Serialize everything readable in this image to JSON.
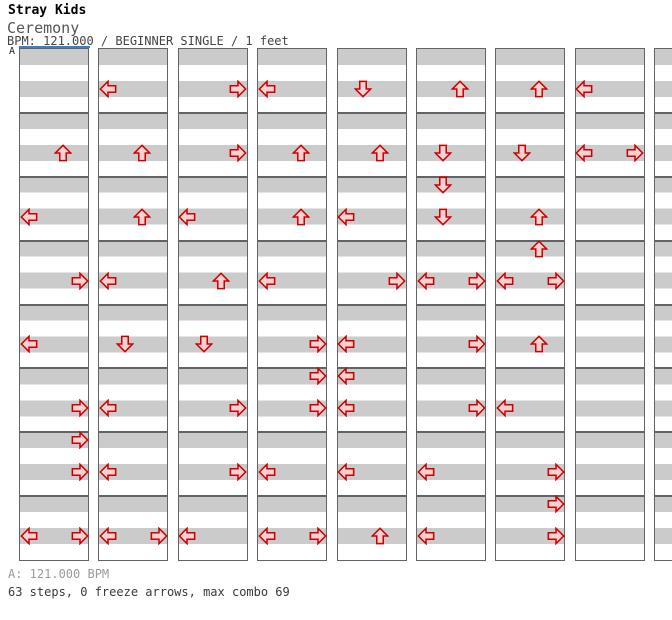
{
  "header": {
    "artist": "Stray Kids",
    "title": "Ceremony",
    "info": "BPM: 121.000 / BEGINNER SINGLE / 1 feet"
  },
  "section_label": "A",
  "footer": {
    "bpm_line": "A: 121.000 BPM",
    "stats_line": "63 steps, 0 freeze arrows, max combo 69"
  },
  "colors": {
    "stripe_gray": "#cbcbcb",
    "strip_border": "#636363",
    "arrow_outline": "#cc0000",
    "arrow_fill": "#f8d2d2",
    "section_marker_blue": "#3d7ec6"
  },
  "chart": {
    "type": "ddr-stepchart",
    "lanes": [
      "L",
      "D",
      "U",
      "R"
    ],
    "lane_names": {
      "L": "left",
      "D": "down",
      "U": "up",
      "R": "right"
    },
    "rows_per_column": 32,
    "rows_per_measure": 4,
    "total_steps": 63,
    "total_arrows": 69,
    "columns": [
      {
        "id": 1,
        "steps": [
          {
            "row": 6,
            "arrows": [
              "U"
            ]
          },
          {
            "row": 10,
            "arrows": [
              "L"
            ]
          },
          {
            "row": 14,
            "arrows": [
              "R"
            ]
          },
          {
            "row": 18,
            "arrows": [
              "L"
            ]
          },
          {
            "row": 22,
            "arrows": [
              "R"
            ]
          },
          {
            "row": 24,
            "arrows": [
              "R"
            ]
          },
          {
            "row": 26,
            "arrows": [
              "R"
            ]
          },
          {
            "row": 30,
            "arrows": [
              "L",
              "R"
            ]
          }
        ]
      },
      {
        "id": 2,
        "steps": [
          {
            "row": 2,
            "arrows": [
              "L"
            ]
          },
          {
            "row": 6,
            "arrows": [
              "U"
            ]
          },
          {
            "row": 10,
            "arrows": [
              "U"
            ]
          },
          {
            "row": 14,
            "arrows": [
              "L"
            ]
          },
          {
            "row": 18,
            "arrows": [
              "D"
            ]
          },
          {
            "row": 22,
            "arrows": [
              "L"
            ]
          },
          {
            "row": 26,
            "arrows": [
              "L"
            ]
          },
          {
            "row": 30,
            "arrows": [
              "L",
              "R"
            ]
          }
        ]
      },
      {
        "id": 3,
        "steps": [
          {
            "row": 2,
            "arrows": [
              "R"
            ]
          },
          {
            "row": 6,
            "arrows": [
              "R"
            ]
          },
          {
            "row": 10,
            "arrows": [
              "L"
            ]
          },
          {
            "row": 14,
            "arrows": [
              "U"
            ]
          },
          {
            "row": 18,
            "arrows": [
              "D"
            ]
          },
          {
            "row": 22,
            "arrows": [
              "R"
            ]
          },
          {
            "row": 26,
            "arrows": [
              "R"
            ]
          },
          {
            "row": 30,
            "arrows": [
              "L"
            ]
          }
        ]
      },
      {
        "id": 4,
        "steps": [
          {
            "row": 2,
            "arrows": [
              "L"
            ]
          },
          {
            "row": 6,
            "arrows": [
              "U"
            ]
          },
          {
            "row": 10,
            "arrows": [
              "U"
            ]
          },
          {
            "row": 14,
            "arrows": [
              "L"
            ]
          },
          {
            "row": 18,
            "arrows": [
              "R"
            ]
          },
          {
            "row": 20,
            "arrows": [
              "R"
            ]
          },
          {
            "row": 22,
            "arrows": [
              "R"
            ]
          },
          {
            "row": 26,
            "arrows": [
              "L"
            ]
          },
          {
            "row": 30,
            "arrows": [
              "L",
              "R"
            ]
          }
        ]
      },
      {
        "id": 5,
        "steps": [
          {
            "row": 2,
            "arrows": [
              "D"
            ]
          },
          {
            "row": 6,
            "arrows": [
              "U"
            ]
          },
          {
            "row": 10,
            "arrows": [
              "L"
            ]
          },
          {
            "row": 14,
            "arrows": [
              "R"
            ]
          },
          {
            "row": 18,
            "arrows": [
              "L"
            ]
          },
          {
            "row": 20,
            "arrows": [
              "L"
            ]
          },
          {
            "row": 22,
            "arrows": [
              "L"
            ]
          },
          {
            "row": 26,
            "arrows": [
              "L"
            ]
          },
          {
            "row": 30,
            "arrows": [
              "U"
            ]
          }
        ]
      },
      {
        "id": 6,
        "steps": [
          {
            "row": 2,
            "arrows": [
              "U"
            ]
          },
          {
            "row": 6,
            "arrows": [
              "D"
            ]
          },
          {
            "row": 8,
            "arrows": [
              "D"
            ]
          },
          {
            "row": 10,
            "arrows": [
              "D"
            ]
          },
          {
            "row": 14,
            "arrows": [
              "L",
              "R"
            ]
          },
          {
            "row": 18,
            "arrows": [
              "R"
            ]
          },
          {
            "row": 22,
            "arrows": [
              "R"
            ]
          },
          {
            "row": 26,
            "arrows": [
              "L"
            ]
          },
          {
            "row": 30,
            "arrows": [
              "L"
            ]
          }
        ]
      },
      {
        "id": 7,
        "steps": [
          {
            "row": 2,
            "arrows": [
              "U"
            ]
          },
          {
            "row": 6,
            "arrows": [
              "D"
            ]
          },
          {
            "row": 10,
            "arrows": [
              "U"
            ]
          },
          {
            "row": 12,
            "arrows": [
              "U"
            ]
          },
          {
            "row": 14,
            "arrows": [
              "L",
              "R"
            ]
          },
          {
            "row": 18,
            "arrows": [
              "U"
            ]
          },
          {
            "row": 22,
            "arrows": [
              "L"
            ]
          },
          {
            "row": 26,
            "arrows": [
              "R"
            ]
          },
          {
            "row": 28,
            "arrows": [
              "R"
            ]
          },
          {
            "row": 30,
            "arrows": [
              "R"
            ]
          }
        ]
      },
      {
        "id": 8,
        "steps": [
          {
            "row": 2,
            "arrows": [
              "L"
            ]
          },
          {
            "row": 6,
            "arrows": [
              "L",
              "R"
            ]
          }
        ]
      },
      {
        "id": 9,
        "steps": []
      }
    ]
  }
}
